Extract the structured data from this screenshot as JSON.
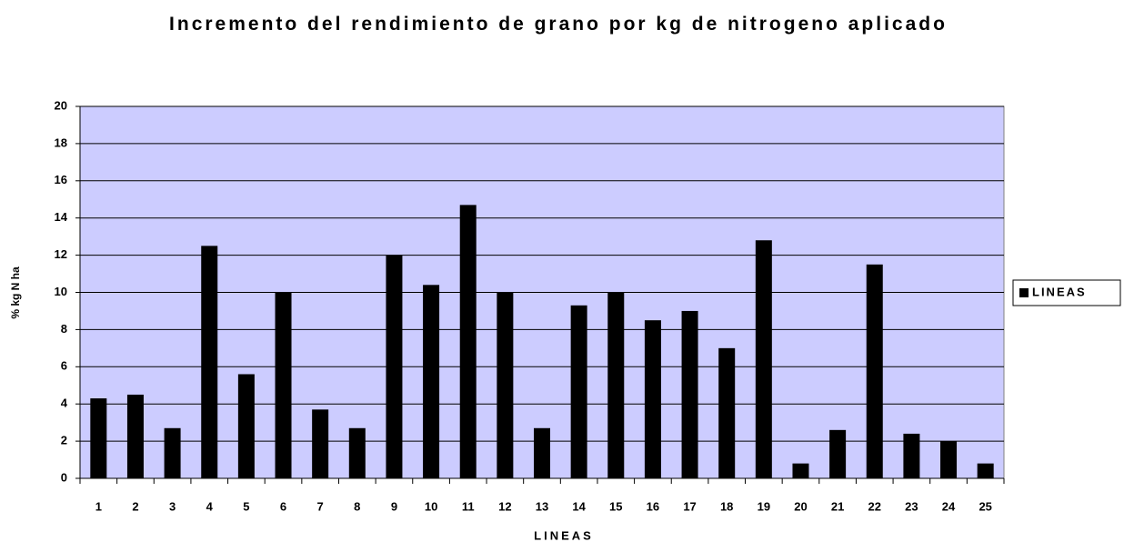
{
  "chart_data": {
    "type": "bar",
    "title": "Incremento del rendimiento de grano por kg de nitrogeno aplicado",
    "x_label": "LINEAS",
    "y_label": "% kg N ha",
    "categories": [
      "1",
      "2",
      "3",
      "4",
      "5",
      "6",
      "7",
      "8",
      "9",
      "10",
      "11",
      "12",
      "13",
      "14",
      "15",
      "16",
      "17",
      "18",
      "19",
      "20",
      "21",
      "22",
      "23",
      "24",
      "25"
    ],
    "series": [
      {
        "name": "LINEAS",
        "color": "#000000",
        "values": [
          4.3,
          4.5,
          2.7,
          12.5,
          5.6,
          10,
          3.7,
          2.7,
          12,
          10.4,
          14.7,
          10,
          2.7,
          9.3,
          10,
          8.5,
          9,
          7,
          12.8,
          0.8,
          2.6,
          11.5,
          2.4,
          2,
          0.8
        ]
      }
    ],
    "ylim": [
      0,
      20
    ],
    "yticks": [
      0,
      2,
      4,
      6,
      8,
      10,
      12,
      14,
      16,
      18,
      20
    ],
    "grid": true,
    "legend": "right",
    "plot_background": "#ccccff"
  }
}
